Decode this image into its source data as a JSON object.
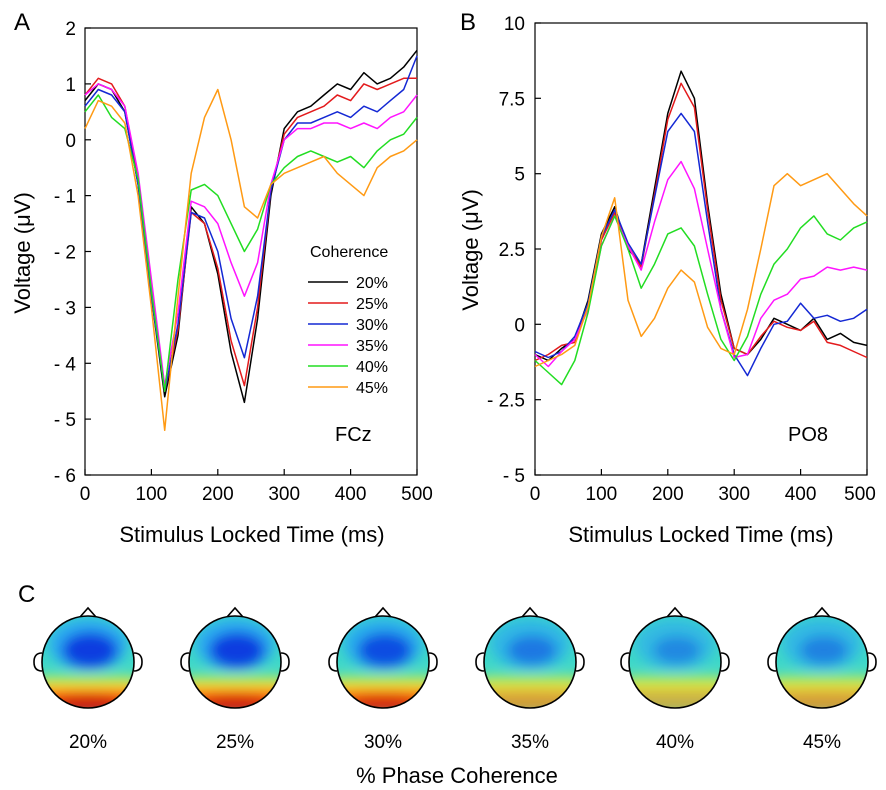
{
  "chart_data": [
    {
      "type": "line",
      "panel_letter": "A",
      "electrode": "FCz",
      "xlabel": "Stimulus Locked Time (ms)",
      "ylabel": "Voltage (μV)",
      "xlim": [
        0,
        500
      ],
      "ylim": [
        -6,
        2
      ],
      "x_ticks": [
        0,
        100,
        200,
        300,
        400,
        500
      ],
      "x_tick_labels": [
        "0",
        "100",
        "200",
        "300",
        "400",
        "500"
      ],
      "y_ticks": [
        2,
        1,
        0,
        -1,
        -2,
        -3,
        -4,
        -5,
        -6
      ],
      "y_tick_labels": [
        "2",
        "1",
        "0",
        "- 1",
        "- 2",
        "- 3",
        "- 4",
        "- 5",
        "- 6"
      ],
      "legend_title": "Coherence",
      "legend_position": "center-right",
      "x": [
        0,
        20,
        40,
        60,
        80,
        100,
        120,
        140,
        160,
        180,
        200,
        220,
        240,
        260,
        280,
        300,
        320,
        340,
        360,
        380,
        400,
        420,
        440,
        460,
        480,
        500
      ],
      "series": [
        {
          "name": "20%",
          "color": "#000000",
          "values": [
            0.7,
            1.0,
            0.9,
            0.5,
            -0.8,
            -2.8,
            -4.6,
            -3.5,
            -1.2,
            -1.5,
            -2.4,
            -3.8,
            -4.7,
            -3.2,
            -1.0,
            0.2,
            0.5,
            0.6,
            0.8,
            1.0,
            0.9,
            1.2,
            1.0,
            1.1,
            1.3,
            1.6
          ]
        },
        {
          "name": "25%",
          "color": "#e31a1c",
          "values": [
            0.8,
            1.1,
            1.0,
            0.6,
            -0.7,
            -2.7,
            -4.5,
            -3.4,
            -1.3,
            -1.5,
            -2.3,
            -3.6,
            -4.4,
            -3.0,
            -0.9,
            0.1,
            0.4,
            0.5,
            0.6,
            0.8,
            0.7,
            1.0,
            0.9,
            1.0,
            1.1,
            1.1
          ]
        },
        {
          "name": "30%",
          "color": "#1428d4",
          "values": [
            0.6,
            0.9,
            0.8,
            0.5,
            -0.8,
            -2.8,
            -4.5,
            -3.3,
            -1.3,
            -1.4,
            -2.0,
            -3.2,
            -3.9,
            -2.8,
            -0.9,
            0.0,
            0.3,
            0.3,
            0.4,
            0.5,
            0.4,
            0.6,
            0.5,
            0.7,
            0.9,
            1.5
          ]
        },
        {
          "name": "35%",
          "color": "#ff14ff",
          "values": [
            0.8,
            1.0,
            0.9,
            0.6,
            -0.6,
            -2.5,
            -4.4,
            -3.1,
            -1.1,
            -1.2,
            -1.5,
            -2.2,
            -2.8,
            -2.2,
            -0.8,
            0.0,
            0.2,
            0.2,
            0.3,
            0.3,
            0.2,
            0.3,
            0.2,
            0.4,
            0.5,
            0.8
          ]
        },
        {
          "name": "40%",
          "color": "#22dd22",
          "values": [
            0.5,
            0.8,
            0.4,
            0.2,
            -0.7,
            -2.7,
            -4.5,
            -2.5,
            -0.9,
            -0.8,
            -1.0,
            -1.5,
            -2.0,
            -1.6,
            -0.8,
            -0.5,
            -0.3,
            -0.2,
            -0.3,
            -0.4,
            -0.3,
            -0.5,
            -0.2,
            0.0,
            0.1,
            0.4
          ]
        },
        {
          "name": "45%",
          "color": "#ff9a14",
          "values": [
            0.2,
            0.7,
            0.6,
            0.3,
            -1.0,
            -3.0,
            -5.2,
            -2.8,
            -0.6,
            0.4,
            0.9,
            0.0,
            -1.2,
            -1.4,
            -0.8,
            -0.6,
            -0.5,
            -0.4,
            -0.3,
            -0.6,
            -0.8,
            -1.0,
            -0.5,
            -0.3,
            -0.2,
            0.0
          ]
        }
      ]
    },
    {
      "type": "line",
      "panel_letter": "B",
      "electrode": "PO8",
      "xlabel": "Stimulus Locked Time (ms)",
      "ylabel": "Voltage (μV)",
      "xlim": [
        0,
        500
      ],
      "ylim": [
        -5,
        10
      ],
      "x_ticks": [
        0,
        100,
        200,
        300,
        400,
        500
      ],
      "x_tick_labels": [
        "0",
        "100",
        "200",
        "300",
        "400",
        "500"
      ],
      "y_ticks": [
        10,
        7.5,
        5,
        2.5,
        0,
        -2.5,
        -5
      ],
      "y_tick_labels": [
        "10",
        "7.5",
        "5",
        "2.5",
        "0",
        "- 2.5",
        "- 5"
      ],
      "x": [
        0,
        20,
        40,
        60,
        80,
        100,
        120,
        140,
        160,
        180,
        200,
        220,
        240,
        260,
        280,
        300,
        320,
        340,
        360,
        380,
        400,
        420,
        440,
        460,
        480,
        500
      ],
      "series": [
        {
          "name": "20%",
          "color": "#000000",
          "values": [
            -1.0,
            -1.2,
            -0.8,
            -0.5,
            0.8,
            3.0,
            3.9,
            2.5,
            2.0,
            4.5,
            7.0,
            8.4,
            7.5,
            4.0,
            1.0,
            -0.8,
            -1.0,
            -0.5,
            0.2,
            0.0,
            -0.2,
            0.2,
            -0.5,
            -0.3,
            -0.6,
            -0.7
          ]
        },
        {
          "name": "25%",
          "color": "#e31a1c",
          "values": [
            -1.2,
            -1.0,
            -0.7,
            -0.6,
            0.6,
            2.8,
            3.7,
            2.6,
            1.9,
            4.3,
            6.8,
            8.0,
            7.2,
            3.8,
            0.8,
            -0.8,
            -1.0,
            -0.4,
            0.1,
            -0.1,
            -0.2,
            0.1,
            -0.6,
            -0.7,
            -0.9,
            -1.1
          ]
        },
        {
          "name": "30%",
          "color": "#1428d4",
          "values": [
            -0.9,
            -1.1,
            -0.9,
            -0.4,
            0.7,
            2.9,
            3.8,
            2.7,
            2.0,
            4.2,
            6.4,
            7.0,
            6.4,
            3.4,
            0.5,
            -1.0,
            -1.7,
            -0.8,
            0.0,
            0.1,
            0.7,
            0.2,
            0.3,
            0.1,
            0.2,
            0.5
          ]
        },
        {
          "name": "35%",
          "color": "#ff14ff",
          "values": [
            -1.0,
            -1.4,
            -0.9,
            -0.5,
            0.5,
            2.6,
            3.6,
            2.6,
            1.8,
            3.4,
            4.8,
            5.4,
            4.5,
            2.5,
            0.5,
            -1.1,
            -1.0,
            0.2,
            0.8,
            1.0,
            1.5,
            1.6,
            1.9,
            1.8,
            1.9,
            1.8
          ]
        },
        {
          "name": "40%",
          "color": "#22dd22",
          "values": [
            -1.2,
            -1.6,
            -2.0,
            -1.2,
            0.4,
            2.6,
            3.6,
            2.5,
            1.2,
            2.0,
            3.0,
            3.2,
            2.6,
            1.0,
            -0.5,
            -1.2,
            -0.4,
            1.0,
            2.0,
            2.5,
            3.2,
            3.6,
            3.0,
            2.8,
            3.2,
            3.4
          ]
        },
        {
          "name": "45%",
          "color": "#ff9a14",
          "values": [
            -1.4,
            -1.2,
            -1.0,
            -0.7,
            0.6,
            2.9,
            4.2,
            0.8,
            -0.4,
            0.2,
            1.2,
            1.8,
            1.4,
            -0.1,
            -0.8,
            -1.0,
            0.5,
            2.5,
            4.6,
            5.0,
            4.6,
            4.8,
            5.0,
            4.5,
            4.0,
            3.6
          ]
        }
      ]
    },
    {
      "type": "heatmap",
      "panel_letter": "C",
      "xlabel": "% Phase Coherence",
      "maps": [
        {
          "label": "20%",
          "frontal_intensity": 1.0,
          "posterior_intensity": 1.0
        },
        {
          "label": "25%",
          "frontal_intensity": 1.0,
          "posterior_intensity": 0.95
        },
        {
          "label": "30%",
          "frontal_intensity": 0.85,
          "posterior_intensity": 0.85
        },
        {
          "label": "35%",
          "frontal_intensity": 0.45,
          "posterior_intensity": 0.35
        },
        {
          "label": "40%",
          "frontal_intensity": 0.3,
          "posterior_intensity": 0.25
        },
        {
          "label": "45%",
          "frontal_intensity": 0.35,
          "posterior_intensity": 0.35
        }
      ]
    }
  ]
}
